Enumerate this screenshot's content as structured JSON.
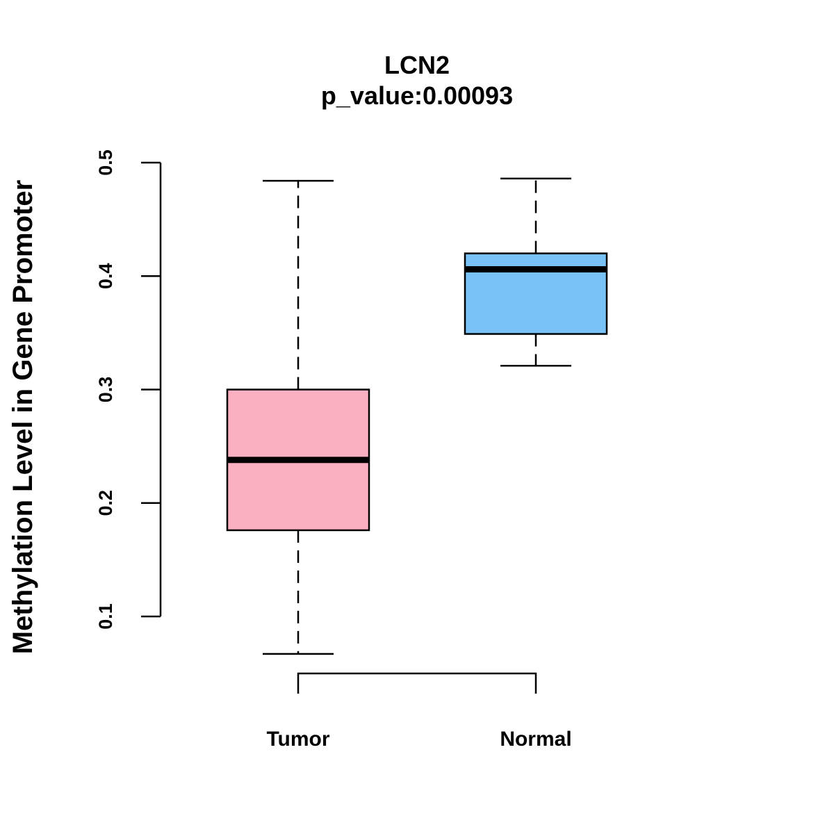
{
  "chart_data": {
    "type": "boxplot",
    "title": "LCN2",
    "subtitle": "p_value:0.00093",
    "xlabel": "",
    "ylabel": "Methylation Level in Gene Promoter",
    "ylim": [
      0.1,
      0.5
    ],
    "yticks": [
      0.1,
      0.2,
      0.3,
      0.4,
      0.5
    ],
    "ytick_labels": [
      "0.1",
      "0.2",
      "0.3",
      "0.4",
      "0.5"
    ],
    "grid": false,
    "categories": [
      "Tumor",
      "Normal"
    ],
    "series": [
      {
        "name": "Tumor",
        "color": "#FBB0C2",
        "min": 0.067,
        "q1": 0.176,
        "median": 0.238,
        "q3": 0.3,
        "max": 0.484
      },
      {
        "name": "Normal",
        "color": "#79C2F7",
        "min": 0.321,
        "q1": 0.349,
        "median": 0.406,
        "q3": 0.42,
        "max": 0.486
      }
    ],
    "annotation": "comparison bracket between Tumor and Normal"
  }
}
